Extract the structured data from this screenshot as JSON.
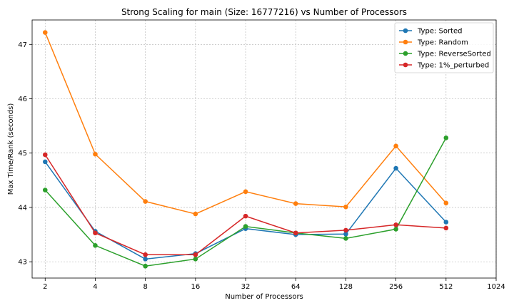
{
  "chart_data": {
    "type": "line",
    "title": "Strong Scaling for main (Size: 16777216) vs Number of Processors",
    "xlabel": "Number of Processors",
    "ylabel": "Max Time/Rank (seconds)",
    "x_scale": "log2",
    "x_ticks": [
      2,
      4,
      8,
      16,
      32,
      64,
      128,
      256,
      512,
      1024
    ],
    "x_tick_labels": [
      "2",
      "4",
      "8",
      "16",
      "32",
      "64",
      "128",
      "256",
      "512",
      "1024"
    ],
    "xlim": [
      1.67,
      1024
    ],
    "y_ticks": [
      43,
      44,
      45,
      46,
      47
    ],
    "y_tick_labels": [
      "43",
      "44",
      "45",
      "46",
      "47"
    ],
    "ylim": [
      42.7,
      47.45
    ],
    "grid": true,
    "legend_position": "top-right",
    "x": [
      2,
      4,
      8,
      16,
      32,
      64,
      128,
      256,
      512
    ],
    "series": [
      {
        "name": "Type: Sorted",
        "color": "#1f77b4",
        "values": [
          44.84,
          43.56,
          43.05,
          43.15,
          43.61,
          43.5,
          43.51,
          44.72,
          43.73
        ]
      },
      {
        "name": "Type: Random",
        "color": "#ff7f0e",
        "values": [
          47.22,
          44.98,
          44.11,
          43.88,
          44.29,
          44.07,
          44.01,
          45.13,
          44.08
        ]
      },
      {
        "name": "Type: ReverseSorted",
        "color": "#2ca02c",
        "values": [
          44.32,
          43.3,
          42.92,
          43.05,
          43.65,
          43.53,
          43.43,
          43.6,
          45.28
        ]
      },
      {
        "name": "Type: 1%_perturbed",
        "color": "#d62728",
        "values": [
          44.97,
          43.53,
          43.13,
          43.13,
          43.84,
          43.53,
          43.58,
          43.68,
          43.62
        ]
      }
    ]
  }
}
